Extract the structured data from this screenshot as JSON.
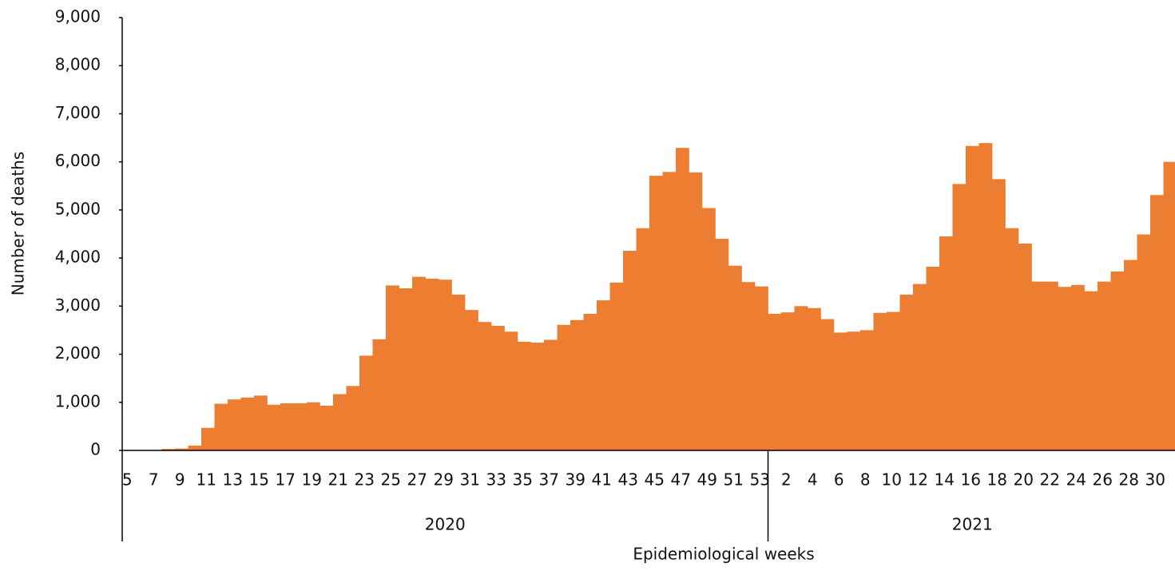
{
  "chart_data": {
    "type": "bar",
    "color": "#ed7d31",
    "y_label": "Number of  deaths",
    "x_label": "Epidemiological weeks",
    "ylim": [
      0,
      9000
    ],
    "yticks": [
      0,
      {
        "value": 1000,
        "label": "1,000"
      },
      {
        "value": 2000,
        "label": "2,000"
      },
      {
        "value": 3000,
        "label": "3,000"
      },
      {
        "value": 4000,
        "label": "4,000"
      },
      {
        "value": 5000,
        "label": "5,000"
      },
      {
        "value": 6000,
        "label": "6,000"
      },
      {
        "value": 7000,
        "label": "7,000"
      },
      {
        "value": 8000,
        "label": "8,000"
      },
      {
        "value": 9000,
        "label": "9,000"
      }
    ],
    "groups": [
      {
        "label": "2020",
        "categories": [
          "5",
          null,
          "7",
          null,
          "9",
          null,
          "11",
          null,
          "13",
          null,
          "15",
          null,
          "17",
          null,
          "19",
          null,
          "21",
          null,
          "23",
          null,
          "25",
          null,
          "27",
          null,
          "29",
          null,
          "31",
          null,
          "33",
          null,
          "35",
          null,
          "37",
          null,
          "39",
          null,
          "41",
          null,
          "43",
          null,
          "45",
          null,
          "47",
          null,
          "49",
          null,
          "51",
          null,
          "53"
        ],
        "values": [
          0,
          0,
          0,
          30,
          40,
          100,
          470,
          970,
          1060,
          1100,
          1140,
          950,
          980,
          980,
          1000,
          930,
          1170,
          1340,
          1970,
          2310,
          3430,
          3370,
          3610,
          3570,
          3550,
          3240,
          2920,
          2670,
          2590,
          2470,
          2260,
          2240,
          2300,
          2610,
          2710,
          2840,
          3120,
          3490,
          4150,
          4620,
          5710,
          5790,
          6290,
          5780,
          5040,
          4400,
          3840,
          3500,
          3410
        ]
      },
      {
        "label": "2021",
        "categories": [
          null,
          "2",
          null,
          "4",
          null,
          "6",
          null,
          "8",
          null,
          "10",
          null,
          "12",
          null,
          "14",
          null,
          "16",
          null,
          "18",
          null,
          "20",
          null,
          "22",
          null,
          "24",
          null,
          "26",
          null,
          "28",
          null,
          "30",
          null
        ],
        "values": [
          2840,
          2870,
          3000,
          2960,
          2730,
          2450,
          2470,
          2500,
          2860,
          2880,
          3240,
          3460,
          3820,
          4450,
          5540,
          6330,
          6390,
          5640,
          4620,
          4300,
          3510,
          3510,
          3400,
          3440,
          3310,
          3510,
          3720,
          3960,
          4490,
          5310,
          6000
        ]
      }
    ]
  }
}
